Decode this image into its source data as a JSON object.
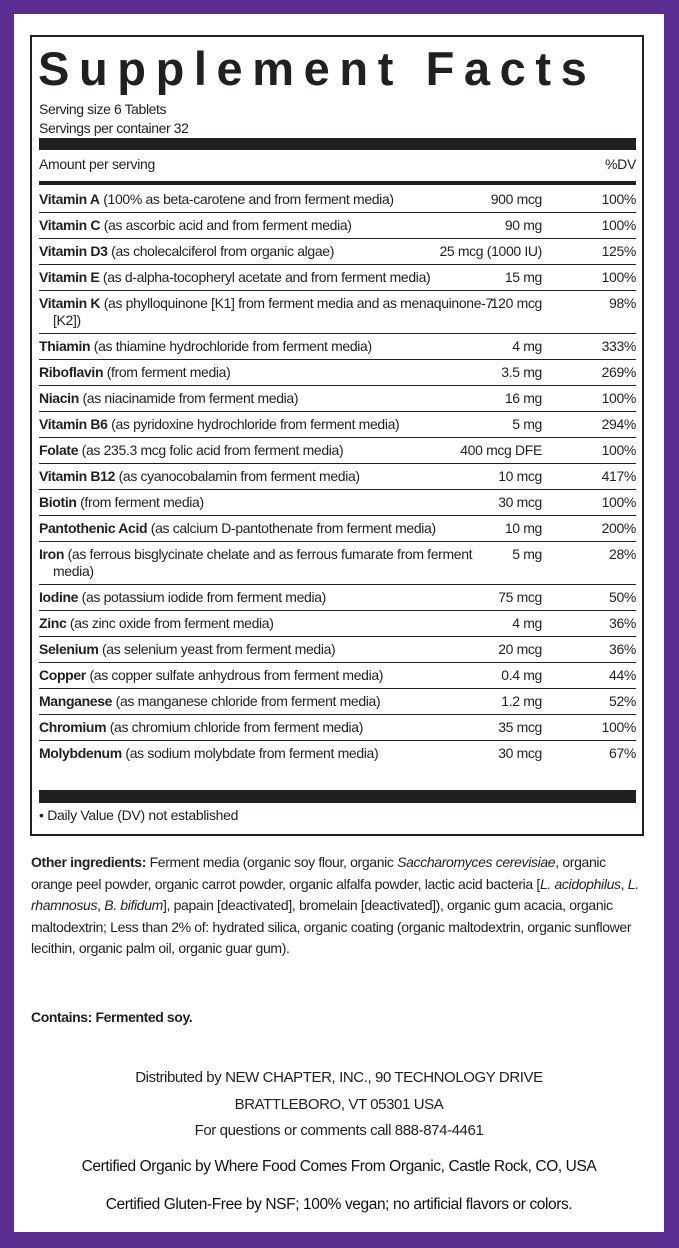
{
  "colors": {
    "border": "#5c2d91",
    "text": "#231f20"
  },
  "title": "Supplement Facts",
  "serving_size": "Serving size 6 Tablets",
  "servings_per_container": "Servings per container 32",
  "header": {
    "amount": "Amount per serving",
    "dv": "%DV"
  },
  "rows": [
    {
      "name": "Vitamin A",
      "desc": " (100% as beta-carotene and from ferment media)",
      "amount": "900 mcg",
      "dv": "100%"
    },
    {
      "name": "Vitamin C",
      "desc": " (as ascorbic acid and from ferment media)",
      "amount": "90 mg",
      "dv": "100%"
    },
    {
      "name": "Vitamin D3",
      "desc": " (as cholecalciferol from organic algae)",
      "amount": "25 mcg (1000 IU)",
      "dv": "125%"
    },
    {
      "name": "Vitamin E",
      "desc": " (as d-alpha-tocopheryl acetate and from ferment media)",
      "amount": "15 mg",
      "dv": "100%"
    },
    {
      "name": "Vitamin K",
      "desc": " (as phylloquinone [K1] from ferment media and as menaquinone-7 [K2])",
      "amount": "120 mcg",
      "dv": "98%"
    },
    {
      "name": "Thiamin",
      "desc": " (as thiamine hydrochloride from ferment media)",
      "amount": "4 mg",
      "dv": "333%"
    },
    {
      "name": "Riboflavin",
      "desc": " (from ferment media)",
      "amount": "3.5 mg",
      "dv": "269%"
    },
    {
      "name": "Niacin",
      "desc": " (as niacinamide from ferment media)",
      "amount": "16 mg",
      "dv": "100%"
    },
    {
      "name": "Vitamin B6",
      "desc": " (as pyridoxine hydrochloride from ferment media)",
      "amount": "5 mg",
      "dv": "294%"
    },
    {
      "name": "Folate",
      "desc": " (as 235.3 mcg folic acid from ferment media)",
      "amount": "400 mcg DFE",
      "dv": "100%"
    },
    {
      "name": "Vitamin B12",
      "desc": " (as cyanocobalamin from ferment media)",
      "amount": "10 mcg",
      "dv": "417%"
    },
    {
      "name": "Biotin",
      "desc": " (from ferment media)",
      "amount": "30 mcg",
      "dv": "100%"
    },
    {
      "name": "Pantothenic Acid",
      "desc": " (as calcium D-pantothenate from ferment media)",
      "amount": "10 mg",
      "dv": "200%"
    },
    {
      "name": "Iron",
      "desc": " (as ferrous bisglycinate chelate and as ferrous fumarate from ferment media)",
      "amount": "5 mg",
      "dv": "28%"
    },
    {
      "name": "Iodine",
      "desc": " (as potassium iodide from ferment media)",
      "amount": "75 mcg",
      "dv": "50%"
    },
    {
      "name": "Zinc",
      "desc": " (as zinc oxide from ferment media)",
      "amount": "4 mg",
      "dv": "36%"
    },
    {
      "name": "Selenium",
      "desc": " (as selenium yeast from ferment media)",
      "amount": "20 mcg",
      "dv": "36%"
    },
    {
      "name": "Copper",
      "desc": " (as copper sulfate anhydrous from ferment media)",
      "amount": "0.4 mg",
      "dv": "44%"
    },
    {
      "name": "Manganese",
      "desc": " (as manganese chloride from ferment media)",
      "amount": "1.2 mg",
      "dv": "52%"
    },
    {
      "name": "Chromium",
      "desc": " (as chromium chloride from ferment media)",
      "amount": "35 mcg",
      "dv": "100%"
    },
    {
      "name": "Molybdenum",
      "desc": " (as sodium molybdate from ferment media)",
      "amount": "30 mcg",
      "dv": "67%"
    }
  ],
  "dv_note": "• Daily Value (DV) not established",
  "ingredients": {
    "label": "Other ingredients:",
    "parts": [
      " Ferment media (organic soy flour, organic ",
      "Saccharomyces cerevisiae",
      ", organic orange peel powder, organic carrot powder, organic alfalfa powder, lactic acid bacteria [",
      "L. acidophilus",
      ", ",
      "L. rhamnosus",
      ", ",
      "B. bifidum",
      "], papain [deactivated], bromelain [deactivated]), organic gum acacia, organic maltodextrin; Less than 2% of: hydrated silica, organic coating (organic maltodextrin, organic sunflower lecithin, organic palm oil, organic guar gum)."
    ]
  },
  "contains": "Contains: Fermented soy.",
  "footer": {
    "distributed": "Distributed by NEW CHAPTER, INC., 90 TECHNOLOGY DRIVE",
    "city": "BRATTLEBORO, VT 05301 USA",
    "questions": "For questions or comments call 888-874-4461",
    "organic": "Certified Organic by Where Food Comes From Organic, Castle Rock, CO, USA",
    "gluten": "Certified Gluten-Free by NSF; 100% vegan; no artificial flavors or colors."
  }
}
